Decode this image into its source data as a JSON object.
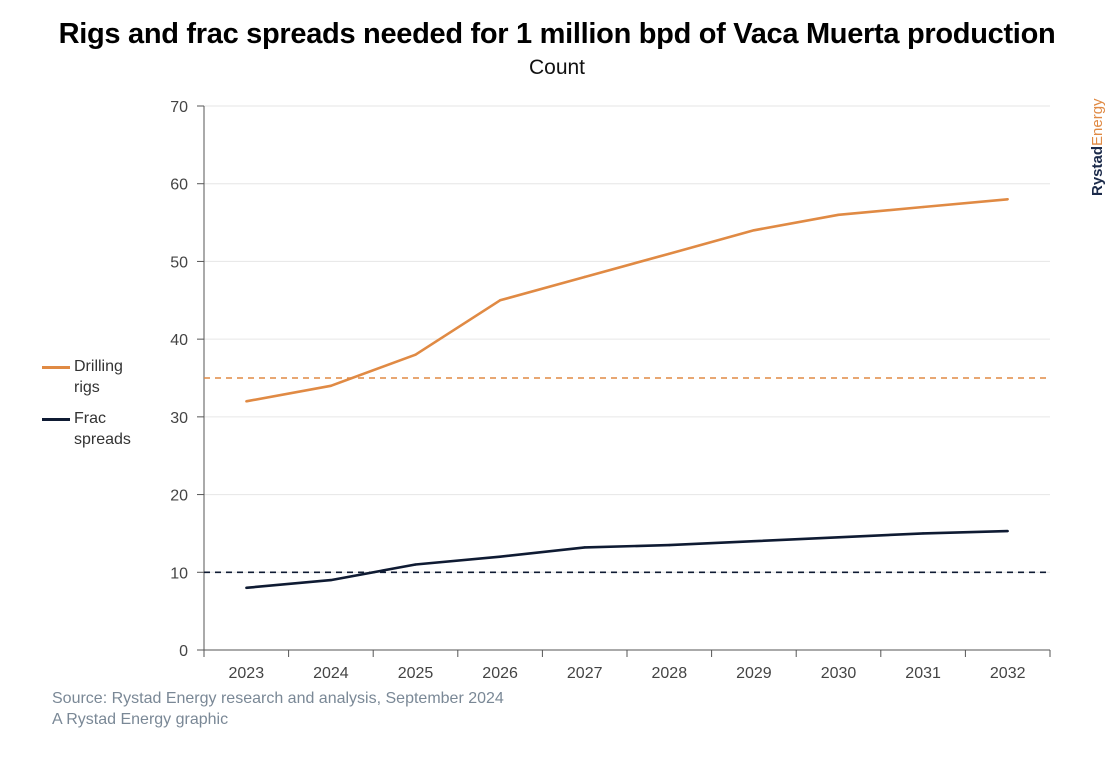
{
  "chart_data": {
    "type": "line",
    "title": "Rigs and frac spreads needed for 1 million bpd of Vaca Muerta production",
    "subtitle": "Count",
    "x": [
      "2023",
      "2024",
      "2025",
      "2026",
      "2027",
      "2028",
      "2029",
      "2030",
      "2031",
      "2032"
    ],
    "ylim": [
      0,
      70
    ],
    "yticks": [
      0,
      10,
      20,
      30,
      40,
      50,
      60,
      70
    ],
    "grid": true,
    "legend_placement": "left",
    "series": [
      {
        "name": "Drilling rigs",
        "color": "#E08A44",
        "values": [
          32,
          34,
          38,
          45,
          48,
          51,
          54,
          56,
          57,
          58
        ]
      },
      {
        "name": "Frac spreads",
        "color": "#0F1B33",
        "values": [
          8,
          9,
          11,
          12,
          13.2,
          13.5,
          14,
          14.5,
          15,
          15.3
        ]
      }
    ],
    "reference_lines": [
      {
        "value": 35,
        "color": "#E08A44",
        "style": "dashed"
      },
      {
        "value": 10,
        "color": "#0F1B33",
        "style": "dashed"
      }
    ]
  },
  "legend": {
    "rigs_line1": "Drilling",
    "rigs_line2": "rigs",
    "frac_line1": "Frac",
    "frac_line2": "spreads"
  },
  "footer": {
    "source": "Source: Rystad Energy research and analysis, September 2024",
    "credit": "A Rystad Energy graphic"
  },
  "brand": {
    "part1": "Rystad",
    "part2": "Energy",
    "color1": "#1B2A4A",
    "color2": "#E08A44"
  }
}
